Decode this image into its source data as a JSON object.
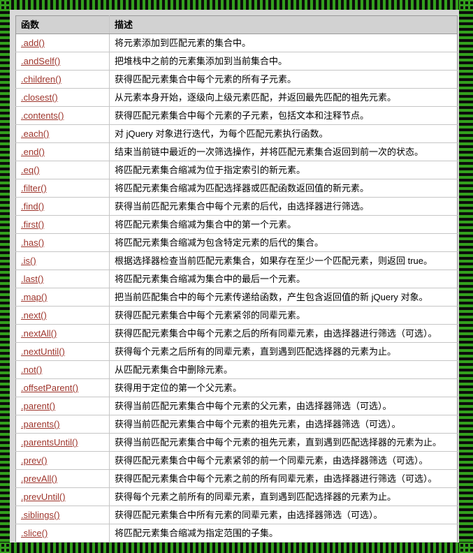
{
  "colors": {
    "frame_green": "#33a01d",
    "frame_black": "#0c0c0c",
    "link_color": "#9e352c",
    "header_bg": "#d2d2d2",
    "page_bg": "#d9d9d9",
    "cell_bg": "#ffffff",
    "table_border": "#9a9a9a",
    "row_border": "#c6c6c6"
  },
  "table": {
    "headers": [
      "函数",
      "描述"
    ],
    "rows": [
      {
        "fn": ".add()",
        "desc": "将元素添加到匹配元素的集合中。"
      },
      {
        "fn": ".andSelf()",
        "desc": "把堆栈中之前的元素集添加到当前集合中。"
      },
      {
        "fn": ".children()",
        "desc": "获得匹配元素集合中每个元素的所有子元素。"
      },
      {
        "fn": ".closest()",
        "desc": "从元素本身开始，逐级向上级元素匹配，并返回最先匹配的祖先元素。"
      },
      {
        "fn": ".contents()",
        "desc": "获得匹配元素集合中每个元素的子元素，包括文本和注释节点。"
      },
      {
        "fn": ".each()",
        "desc": "对 jQuery 对象进行迭代，为每个匹配元素执行函数。"
      },
      {
        "fn": ".end()",
        "desc": "结束当前链中最近的一次筛选操作，并将匹配元素集合返回到前一次的状态。"
      },
      {
        "fn": ".eq()",
        "desc": "将匹配元素集合缩减为位于指定索引的新元素。"
      },
      {
        "fn": ".filter()",
        "desc": "将匹配元素集合缩减为匹配选择器或匹配函数返回值的新元素。"
      },
      {
        "fn": ".find()",
        "desc": "获得当前匹配元素集合中每个元素的后代，由选择器进行筛选。"
      },
      {
        "fn": ".first()",
        "desc": "将匹配元素集合缩减为集合中的第一个元素。"
      },
      {
        "fn": ".has()",
        "desc": "将匹配元素集合缩减为包含特定元素的后代的集合。"
      },
      {
        "fn": ".is()",
        "desc": "根据选择器检查当前匹配元素集合，如果存在至少一个匹配元素，则返回 true。"
      },
      {
        "fn": ".last()",
        "desc": "将匹配元素集合缩减为集合中的最后一个元素。"
      },
      {
        "fn": ".map()",
        "desc": "把当前匹配集合中的每个元素传递给函数，产生包含返回值的新 jQuery 对象。"
      },
      {
        "fn": ".next()",
        "desc": "获得匹配元素集合中每个元素紧邻的同辈元素。"
      },
      {
        "fn": ".nextAll()",
        "desc": "获得匹配元素集合中每个元素之后的所有同辈元素，由选择器进行筛选（可选）。"
      },
      {
        "fn": ".nextUntil()",
        "desc": "获得每个元素之后所有的同辈元素，直到遇到匹配选择器的元素为止。"
      },
      {
        "fn": ".not()",
        "desc": "从匹配元素集合中删除元素。"
      },
      {
        "fn": ".offsetParent()",
        "desc": "获得用于定位的第一个父元素。"
      },
      {
        "fn": ".parent()",
        "desc": "获得当前匹配元素集合中每个元素的父元素，由选择器筛选（可选）。"
      },
      {
        "fn": ".parents()",
        "desc": "获得当前匹配元素集合中每个元素的祖先元素，由选择器筛选（可选）。"
      },
      {
        "fn": ".parentsUntil()",
        "desc": "获得当前匹配元素集合中每个元素的祖先元素，直到遇到匹配选择器的元素为止。"
      },
      {
        "fn": ".prev()",
        "desc": "获得匹配元素集合中每个元素紧邻的前一个同辈元素，由选择器筛选（可选）。"
      },
      {
        "fn": ".prevAll()",
        "desc": "获得匹配元素集合中每个元素之前的所有同辈元素，由选择器进行筛选（可选）。"
      },
      {
        "fn": ".prevUntil()",
        "desc": "获得每个元素之前所有的同辈元素，直到遇到匹配选择器的元素为止。"
      },
      {
        "fn": ".siblings()",
        "desc": "获得匹配元素集合中所有元素的同辈元素，由选择器筛选（可选）。"
      },
      {
        "fn": ".slice()",
        "desc": "将匹配元素集合缩减为指定范围的子集。"
      }
    ]
  }
}
